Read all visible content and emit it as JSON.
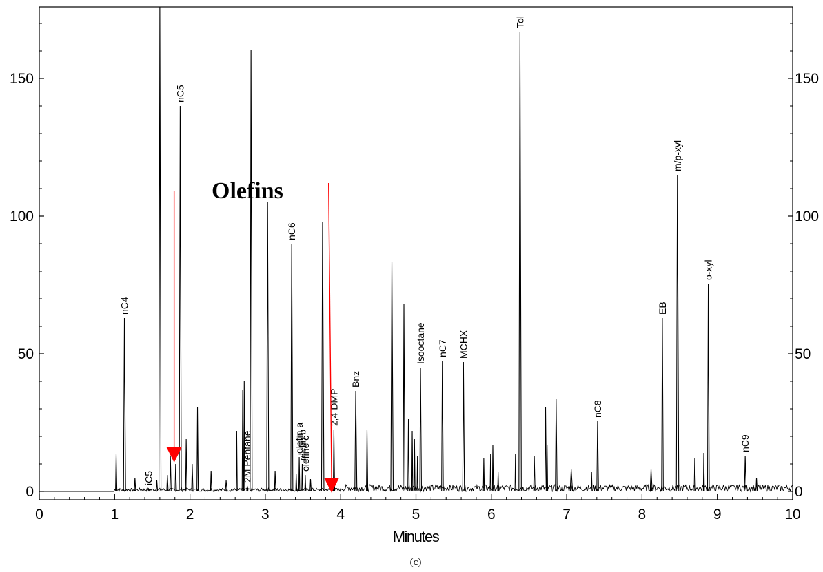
{
  "chart_data": {
    "type": "line",
    "xlabel": "Minutes",
    "caption": "(c)",
    "annotation": "Olefins",
    "xlim": [
      0,
      10
    ],
    "ylim": [
      -3,
      176
    ],
    "x_ticks": [
      0,
      1,
      2,
      3,
      4,
      5,
      6,
      7,
      8,
      9,
      10
    ],
    "y_ticks": [
      0,
      50,
      100,
      150
    ],
    "right_axis": true,
    "grid": false,
    "line_color": "#000000",
    "arrow_color": "#ff0000",
    "arrows": [
      {
        "from": [
          1.79,
          109
        ],
        "to": [
          1.79,
          11
        ]
      },
      {
        "from": [
          3.84,
          112
        ],
        "to": [
          3.88,
          0
        ]
      }
    ],
    "peaks": [
      {
        "x": 1.02,
        "y": 13.5,
        "w": 0.008
      },
      {
        "x": 1.13,
        "y": 63,
        "w": 0.012,
        "label": "nC4"
      },
      {
        "x": 1.27,
        "y": 5,
        "w": 0.008
      },
      {
        "x": 1.45,
        "y": 1,
        "w": 0.008,
        "label": "iC5"
      },
      {
        "x": 1.56,
        "y": 4,
        "w": 0.008
      },
      {
        "x": 1.6,
        "y": 176,
        "w": 0.012
      },
      {
        "x": 1.7,
        "y": 6,
        "w": 0.008
      },
      {
        "x": 1.74,
        "y": 13,
        "w": 0.008
      },
      {
        "x": 1.81,
        "y": 10,
        "w": 0.008
      },
      {
        "x": 1.87,
        "y": 140,
        "w": 0.012,
        "label": "nC5"
      },
      {
        "x": 1.95,
        "y": 19,
        "w": 0.008
      },
      {
        "x": 2.03,
        "y": 10,
        "w": 0.008
      },
      {
        "x": 2.1,
        "y": 30.5,
        "w": 0.008
      },
      {
        "x": 2.28,
        "y": 7.5,
        "w": 0.008
      },
      {
        "x": 2.48,
        "y": 4,
        "w": 0.01
      },
      {
        "x": 2.62,
        "y": 22,
        "w": 0.006
      },
      {
        "x": 2.7,
        "y": 37,
        "w": 0.008
      },
      {
        "x": 2.72,
        "y": 40,
        "w": 0.006
      },
      {
        "x": 2.76,
        "y": 2,
        "w": 0.008,
        "label": "2M Pentane"
      },
      {
        "x": 2.81,
        "y": 160.5,
        "w": 0.012
      },
      {
        "x": 3.03,
        "y": 105,
        "w": 0.012
      },
      {
        "x": 3.13,
        "y": 7.5,
        "w": 0.008
      },
      {
        "x": 3.35,
        "y": 90,
        "w": 0.012,
        "label": "nC6"
      },
      {
        "x": 3.41,
        "y": 6.5,
        "w": 0.006
      },
      {
        "x": 3.45,
        "y": 12.5,
        "w": 0.006,
        "label": "olefin a"
      },
      {
        "x": 3.49,
        "y": 10,
        "w": 0.006,
        "label": "olefin b"
      },
      {
        "x": 3.53,
        "y": 6,
        "w": 0.006,
        "label": "olefine c"
      },
      {
        "x": 3.6,
        "y": 4.5,
        "w": 0.008
      },
      {
        "x": 3.76,
        "y": 98,
        "w": 0.014
      },
      {
        "x": 3.91,
        "y": 22.5,
        "w": 0.008,
        "label": "2,4 DMP"
      },
      {
        "x": 4.2,
        "y": 36.5,
        "w": 0.012,
        "label": "Bnz"
      },
      {
        "x": 4.35,
        "y": 22.5,
        "w": 0.008
      },
      {
        "x": 4.68,
        "y": 83.5,
        "w": 0.014
      },
      {
        "x": 4.84,
        "y": 68,
        "w": 0.01
      },
      {
        "x": 4.9,
        "y": 26.5,
        "w": 0.008
      },
      {
        "x": 4.95,
        "y": 22,
        "w": 0.006
      },
      {
        "x": 4.98,
        "y": 19,
        "w": 0.006
      },
      {
        "x": 5.02,
        "y": 13,
        "w": 0.006
      },
      {
        "x": 5.06,
        "y": 45,
        "w": 0.01,
        "label": "Isooctane"
      },
      {
        "x": 5.35,
        "y": 47.5,
        "w": 0.01,
        "label": "nC7"
      },
      {
        "x": 5.63,
        "y": 47,
        "w": 0.01,
        "label": "MCHX"
      },
      {
        "x": 5.9,
        "y": 12,
        "w": 0.006
      },
      {
        "x": 5.99,
        "y": 13.5,
        "w": 0.006
      },
      {
        "x": 6.02,
        "y": 17,
        "w": 0.006
      },
      {
        "x": 6.09,
        "y": 7,
        "w": 0.006
      },
      {
        "x": 6.32,
        "y": 13.5,
        "w": 0.006
      },
      {
        "x": 6.38,
        "y": 167,
        "w": 0.014,
        "label": "Tol"
      },
      {
        "x": 6.57,
        "y": 13,
        "w": 0.008
      },
      {
        "x": 6.72,
        "y": 30.5,
        "w": 0.008
      },
      {
        "x": 6.74,
        "y": 17,
        "w": 0.006
      },
      {
        "x": 6.86,
        "y": 33.5,
        "w": 0.01
      },
      {
        "x": 7.06,
        "y": 8,
        "w": 0.014
      },
      {
        "x": 7.33,
        "y": 7,
        "w": 0.006
      },
      {
        "x": 7.41,
        "y": 25.5,
        "w": 0.01,
        "label": "nC8"
      },
      {
        "x": 8.12,
        "y": 8,
        "w": 0.012
      },
      {
        "x": 8.27,
        "y": 63,
        "w": 0.01,
        "label": "EB"
      },
      {
        "x": 8.47,
        "y": 115,
        "w": 0.014,
        "label": "m/p-xyl"
      },
      {
        "x": 8.7,
        "y": 12,
        "w": 0.008
      },
      {
        "x": 8.82,
        "y": 14,
        "w": 0.006
      },
      {
        "x": 8.88,
        "y": 75.5,
        "w": 0.01,
        "label": "o-xyl"
      },
      {
        "x": 9.37,
        "y": 13,
        "w": 0.01,
        "label": "nC9"
      },
      {
        "x": 9.52,
        "y": 5,
        "w": 0.008
      }
    ]
  }
}
